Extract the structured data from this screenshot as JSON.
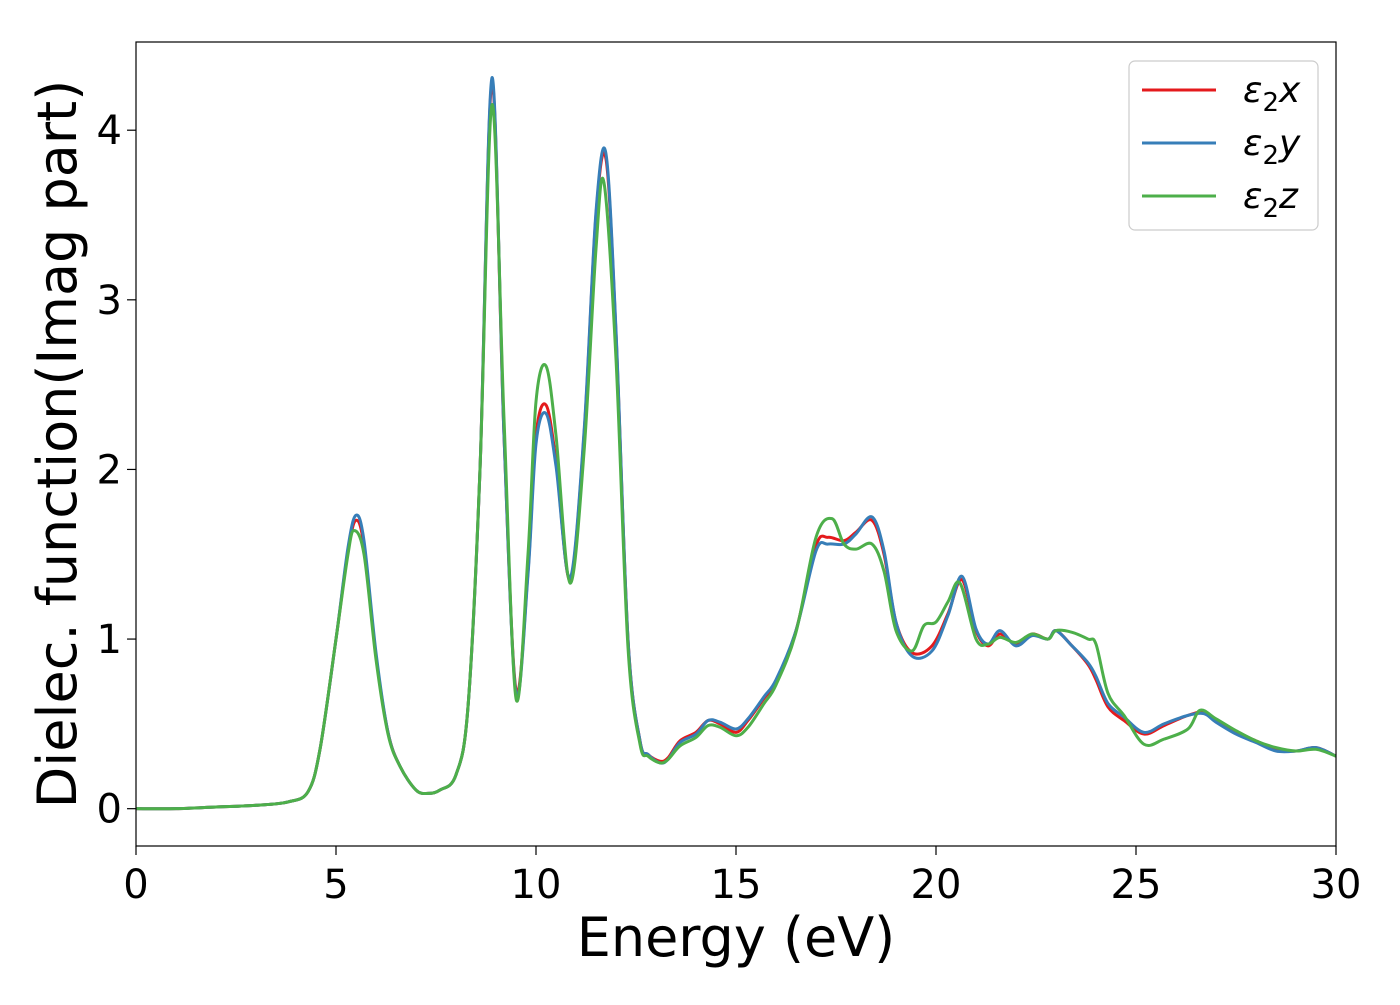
{
  "chart_data": {
    "type": "line",
    "title": "",
    "xlabel": "Energy (eV)",
    "ylabel": "Dielec. function(Imag part)",
    "xlim": [
      0,
      30
    ],
    "ylim": [
      -0.22,
      4.52
    ],
    "xticks": [
      0,
      5,
      10,
      15,
      20,
      25,
      30
    ],
    "yticks": [
      0,
      1,
      2,
      3,
      4
    ],
    "xtick_labels": [
      "0",
      "5",
      "10",
      "15",
      "20",
      "25",
      "30"
    ],
    "ytick_labels": [
      "0",
      "1",
      "2",
      "3",
      "4"
    ],
    "grid": false,
    "legend_position": "top-right",
    "series": [
      {
        "name": "ε₂x",
        "legend_base": "ε",
        "legend_sub": "2",
        "legend_suffix": "x",
        "color": "#e41a1c",
        "x": [
          0,
          1,
          2,
          3,
          3.8,
          4.3,
          4.6,
          5.0,
          5.3,
          5.5,
          5.7,
          6.0,
          6.3,
          6.6,
          7.0,
          7.3,
          7.6,
          8.0,
          8.3,
          8.6,
          8.9,
          9.2,
          9.5,
          9.8,
          10.0,
          10.25,
          10.5,
          10.85,
          11.2,
          11.5,
          11.75,
          12.0,
          12.3,
          12.6,
          12.8,
          13.1,
          13.3,
          13.6,
          14.0,
          14.3,
          14.6,
          15.0,
          15.3,
          15.7,
          16.0,
          16.5,
          17.0,
          17.3,
          17.7,
          18.0,
          18.4,
          18.7,
          19.0,
          19.4,
          19.9,
          20.3,
          20.65,
          21.0,
          21.3,
          21.6,
          22.0,
          22.4,
          22.8,
          23.0,
          23.4,
          23.8,
          24.0,
          24.3,
          24.7,
          25.2,
          25.7,
          26.3,
          26.7,
          27.0,
          27.5,
          28.0,
          28.5,
          29.0,
          29.5,
          30.0
        ],
        "y": [
          0.0,
          0.0,
          0.01,
          0.02,
          0.04,
          0.1,
          0.35,
          1.0,
          1.52,
          1.7,
          1.55,
          0.9,
          0.45,
          0.25,
          0.11,
          0.09,
          0.11,
          0.2,
          0.6,
          2.0,
          4.28,
          2.2,
          0.7,
          1.4,
          2.2,
          2.38,
          2.05,
          1.35,
          2.2,
          3.5,
          3.83,
          2.8,
          1.0,
          0.4,
          0.32,
          0.28,
          0.3,
          0.4,
          0.45,
          0.52,
          0.5,
          0.45,
          0.52,
          0.65,
          0.75,
          1.05,
          1.55,
          1.6,
          1.58,
          1.63,
          1.7,
          1.5,
          1.1,
          0.92,
          0.96,
          1.15,
          1.35,
          1.05,
          0.96,
          1.03,
          0.97,
          1.03,
          1.0,
          1.05,
          0.96,
          0.85,
          0.76,
          0.6,
          0.52,
          0.44,
          0.49,
          0.55,
          0.57,
          0.52,
          0.45,
          0.4,
          0.35,
          0.34,
          0.36,
          0.31
        ]
      },
      {
        "name": "ε₂y",
        "legend_base": "ε",
        "legend_sub": "2",
        "legend_suffix": "y",
        "color": "#377eb8",
        "x": [
          0,
          1,
          2,
          3,
          3.8,
          4.3,
          4.6,
          5.0,
          5.3,
          5.5,
          5.7,
          6.0,
          6.3,
          6.6,
          7.0,
          7.3,
          7.6,
          8.0,
          8.3,
          8.6,
          8.9,
          9.2,
          9.5,
          9.8,
          10.0,
          10.25,
          10.5,
          10.85,
          11.2,
          11.5,
          11.75,
          12.0,
          12.3,
          12.6,
          12.8,
          13.1,
          13.3,
          13.6,
          14.0,
          14.3,
          14.6,
          15.0,
          15.3,
          15.7,
          16.0,
          16.5,
          17.0,
          17.3,
          17.7,
          18.0,
          18.4,
          18.7,
          19.0,
          19.4,
          19.9,
          20.3,
          20.65,
          21.0,
          21.3,
          21.6,
          22.0,
          22.4,
          22.8,
          23.0,
          23.4,
          23.8,
          24.0,
          24.3,
          24.7,
          25.2,
          25.7,
          26.3,
          26.7,
          27.0,
          27.5,
          28.0,
          28.5,
          29.0,
          29.5,
          30.0
        ],
        "y": [
          0.0,
          0.0,
          0.01,
          0.02,
          0.04,
          0.1,
          0.35,
          1.0,
          1.54,
          1.73,
          1.58,
          0.92,
          0.45,
          0.25,
          0.11,
          0.09,
          0.11,
          0.2,
          0.6,
          2.0,
          4.31,
          2.2,
          0.68,
          1.38,
          2.15,
          2.33,
          2.02,
          1.36,
          2.22,
          3.52,
          3.86,
          2.82,
          1.0,
          0.4,
          0.32,
          0.27,
          0.29,
          0.39,
          0.44,
          0.52,
          0.51,
          0.47,
          0.53,
          0.66,
          0.76,
          1.05,
          1.52,
          1.56,
          1.56,
          1.62,
          1.72,
          1.52,
          1.1,
          0.9,
          0.93,
          1.14,
          1.37,
          1.06,
          0.97,
          1.05,
          0.96,
          1.02,
          1.0,
          1.05,
          0.96,
          0.86,
          0.78,
          0.62,
          0.54,
          0.45,
          0.5,
          0.55,
          0.56,
          0.51,
          0.44,
          0.39,
          0.34,
          0.34,
          0.36,
          0.31
        ]
      },
      {
        "name": "ε₂z",
        "legend_base": "ε",
        "legend_sub": "2",
        "legend_suffix": "z",
        "color": "#4daf4a",
        "x": [
          0,
          1,
          2,
          3,
          3.8,
          4.3,
          4.6,
          5.0,
          5.3,
          5.45,
          5.7,
          6.0,
          6.3,
          6.6,
          7.0,
          7.3,
          7.6,
          8.0,
          8.3,
          8.6,
          8.9,
          9.2,
          9.5,
          9.8,
          10.0,
          10.25,
          10.5,
          10.85,
          11.2,
          11.5,
          11.7,
          12.0,
          12.3,
          12.6,
          12.8,
          13.1,
          13.3,
          13.6,
          14.0,
          14.3,
          14.6,
          15.0,
          15.3,
          15.7,
          16.0,
          16.5,
          17.0,
          17.4,
          17.7,
          18.0,
          18.4,
          18.7,
          19.0,
          19.4,
          19.7,
          20.0,
          20.3,
          20.6,
          21.0,
          21.3,
          21.6,
          22.0,
          22.4,
          22.8,
          23.0,
          23.4,
          23.8,
          24.0,
          24.3,
          24.7,
          25.2,
          25.7,
          26.3,
          26.6,
          27.0,
          27.5,
          28.0,
          28.5,
          29.0,
          29.5,
          30.0
        ],
        "y": [
          0.0,
          0.0,
          0.01,
          0.02,
          0.04,
          0.1,
          0.35,
          1.0,
          1.5,
          1.64,
          1.5,
          0.88,
          0.44,
          0.25,
          0.11,
          0.09,
          0.11,
          0.2,
          0.6,
          2.0,
          4.15,
          2.3,
          0.65,
          1.5,
          2.4,
          2.61,
          2.2,
          1.33,
          2.1,
          3.3,
          3.69,
          2.65,
          0.95,
          0.38,
          0.31,
          0.27,
          0.29,
          0.37,
          0.42,
          0.49,
          0.48,
          0.43,
          0.48,
          0.62,
          0.73,
          1.04,
          1.6,
          1.71,
          1.56,
          1.53,
          1.56,
          1.4,
          1.05,
          0.93,
          1.08,
          1.1,
          1.22,
          1.33,
          1.0,
          0.97,
          1.01,
          0.98,
          1.03,
          1.0,
          1.05,
          1.04,
          1.0,
          0.97,
          0.68,
          0.55,
          0.38,
          0.41,
          0.47,
          0.58,
          0.53,
          0.46,
          0.4,
          0.36,
          0.34,
          0.35,
          0.31
        ]
      }
    ]
  }
}
